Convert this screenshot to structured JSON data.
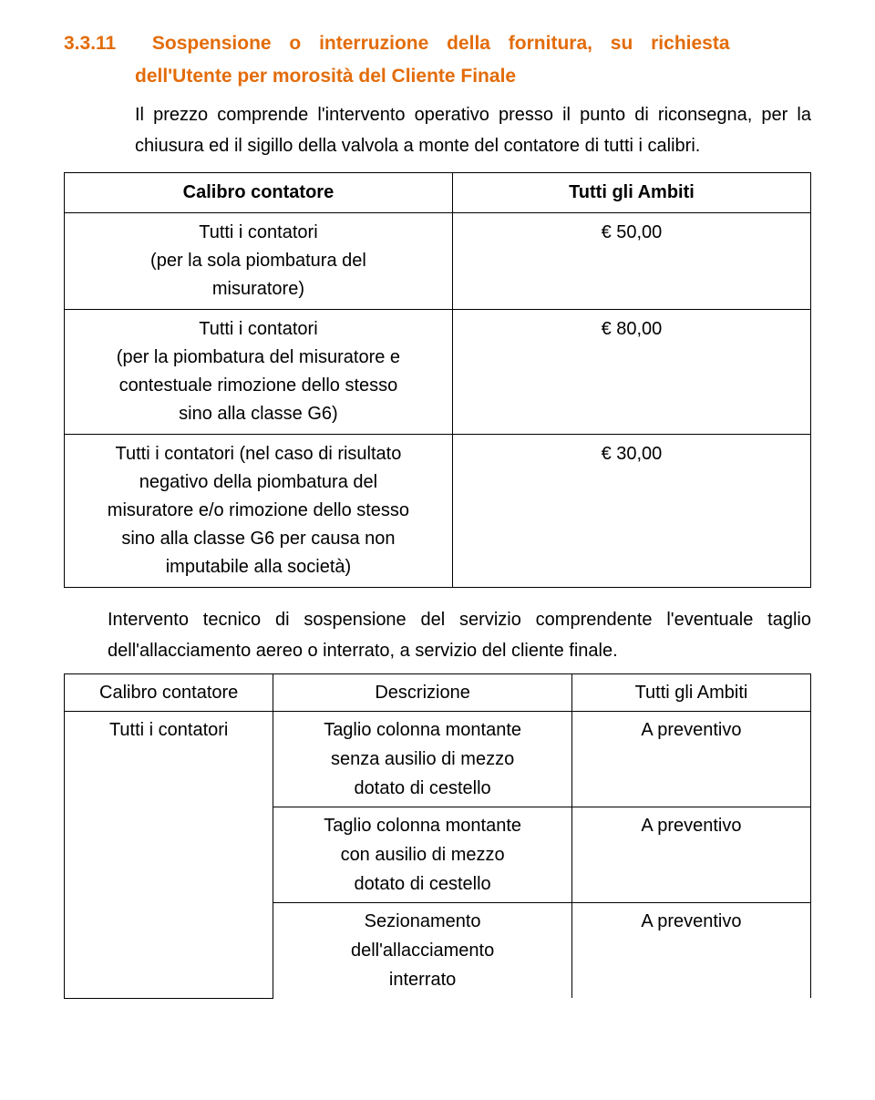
{
  "heading_number": "3.3.11",
  "heading_line1": "Sospensione o interruzione della fornitura, su richiesta",
  "heading_line2": "dell'Utente per morosità del Cliente Finale",
  "paragraph1": "Il prezzo comprende l'intervento operativo presso il punto di riconsegna, per la chiusura ed il sigillo della valvola a monte del contatore di tutti i calibri.",
  "table1": {
    "header_left": "Calibro contatore",
    "header_right": "Tutti gli Ambiti",
    "row1_left": "Tutti i contatori\n(per la sola piombatura del misuratore)",
    "row1_right": "€ 50,00",
    "row2_left": "Tutti i contatori\n(per la piombatura del misuratore e contestuale rimozione dello stesso sino alla classe G6)",
    "row2_right": "€ 80,00",
    "row3_left": "Tutti i contatori (nel caso di risultato negativo della piombatura del misuratore e/o rimozione dello stesso sino alla classe G6 per causa non imputabile alla società)",
    "row3_right": "€ 30,00"
  },
  "paragraph2": "Intervento tecnico di sospensione del servizio comprendente l'eventuale taglio dell'allacciamento aereo o interrato, a servizio del cliente finale.",
  "table2": {
    "header_c1": "Calibro contatore",
    "header_c2": "Descrizione",
    "header_c3": "Tutti gli Ambiti",
    "r1_c1": "Tutti i contatori",
    "r1_c2": "Taglio colonna montante senza ausilio di mezzo dotato di cestello",
    "r1_c3": "A preventivo",
    "r2_c2": "Taglio colonna montante con ausilio di mezzo dotato di cestello",
    "r2_c3": "A preventivo",
    "r3_c2": "Sezionamento dell'allacciamento interrato",
    "r3_c3": "A preventivo"
  }
}
